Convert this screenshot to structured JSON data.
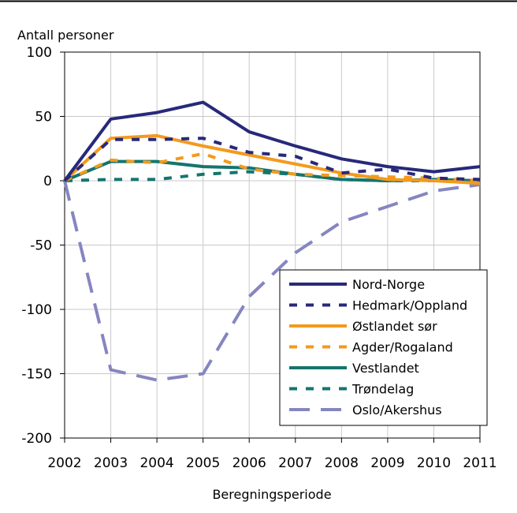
{
  "chart_data": {
    "type": "line",
    "ylabel": "Antall personer",
    "xlabel": "Beregningsperiode",
    "x": [
      "2002",
      "2003",
      "2004",
      "2005",
      "2006",
      "2007",
      "2008",
      "2009",
      "2010",
      "2011"
    ],
    "yticks": [
      "100",
      "50",
      "0",
      "-50",
      "-100",
      "-150",
      "-200"
    ],
    "ylim": [
      -200,
      100
    ],
    "grid": true,
    "legend_position": "bottom-right",
    "series": [
      {
        "name": "Nord-Norge",
        "color": "#27297a",
        "dash": "solid",
        "values": [
          0,
          48,
          53,
          61,
          38,
          27,
          17,
          11,
          7,
          11
        ]
      },
      {
        "name": "Hedmark/Oppland",
        "color": "#27297a",
        "dash": "dot",
        "values": [
          0,
          32,
          32,
          33,
          22,
          19,
          6,
          9,
          2,
          1
        ]
      },
      {
        "name": "Østlandet sør",
        "color": "#f39a1e",
        "dash": "solid",
        "values": [
          0,
          33,
          35,
          27,
          20,
          13,
          6,
          1,
          0,
          -2
        ]
      },
      {
        "name": "Agder/Rogaland",
        "color": "#f39a1e",
        "dash": "dot",
        "values": [
          0,
          16,
          14,
          21,
          9,
          5,
          4,
          3,
          2,
          0
        ]
      },
      {
        "name": "Vestlandet",
        "color": "#14756d",
        "dash": "solid",
        "values": [
          0,
          15,
          15,
          11,
          10,
          5,
          1,
          0,
          1,
          0
        ]
      },
      {
        "name": "Trøndelag",
        "color": "#14756d",
        "dash": "dot",
        "values": [
          0,
          1,
          1,
          5,
          7,
          5,
          1,
          0,
          0,
          0
        ]
      },
      {
        "name": "Oslo/Akershus",
        "color": "#8586c0",
        "dash": "longdash",
        "values": [
          0,
          -147,
          -155,
          -150,
          -90,
          -56,
          -32,
          -20,
          -8,
          -3
        ]
      }
    ]
  }
}
